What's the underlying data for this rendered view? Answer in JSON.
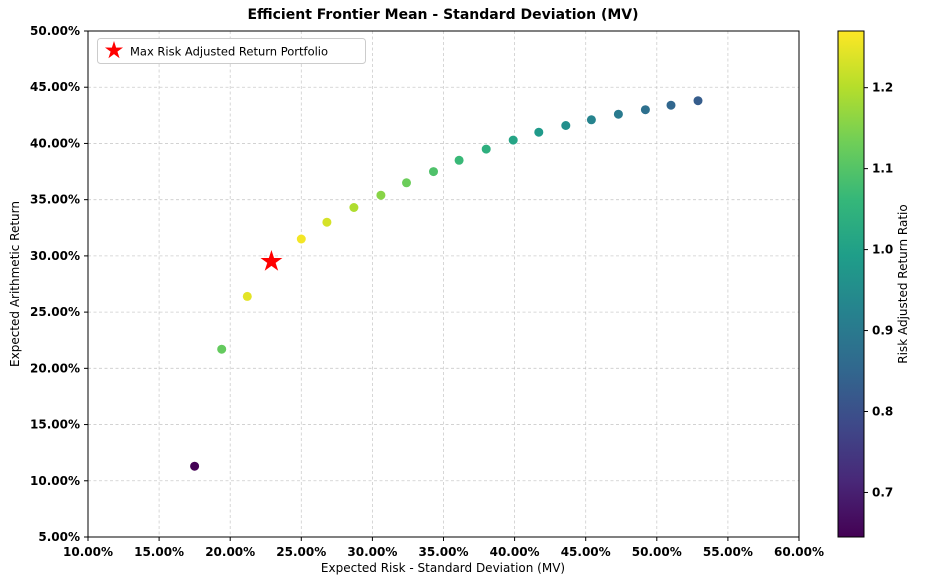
{
  "chart_data": {
    "type": "scatter",
    "title": "Efficient Frontier Mean - Standard Deviation (MV)",
    "xlabel": "Expected Risk - Standard Deviation (MV)",
    "ylabel": "Expected Arithmetic Return",
    "xlim": [
      10,
      60
    ],
    "ylim": [
      5,
      50
    ],
    "grid": true,
    "x_ticks": [
      {
        "value": 10,
        "label": "10.00%"
      },
      {
        "value": 15,
        "label": "15.00%"
      },
      {
        "value": 20,
        "label": "20.00%"
      },
      {
        "value": 25,
        "label": "25.00%"
      },
      {
        "value": 30,
        "label": "30.00%"
      },
      {
        "value": 35,
        "label": "35.00%"
      },
      {
        "value": 40,
        "label": "40.00%"
      },
      {
        "value": 45,
        "label": "45.00%"
      },
      {
        "value": 50,
        "label": "50.00%"
      },
      {
        "value": 55,
        "label": "55.00%"
      },
      {
        "value": 60,
        "label": "60.00%"
      }
    ],
    "y_ticks": [
      {
        "value": 5,
        "label": "5.00%"
      },
      {
        "value": 10,
        "label": "10.00%"
      },
      {
        "value": 15,
        "label": "15.00%"
      },
      {
        "value": 20,
        "label": "20.00%"
      },
      {
        "value": 25,
        "label": "25.00%"
      },
      {
        "value": 30,
        "label": "30.00%"
      },
      {
        "value": 35,
        "label": "35.00%"
      },
      {
        "value": 40,
        "label": "40.00%"
      },
      {
        "value": 45,
        "label": "45.00%"
      },
      {
        "value": 50,
        "label": "50.00%"
      }
    ],
    "legend": {
      "position": "upper left",
      "entries": [
        {
          "label": "Max Risk Adjusted Return Portfolio",
          "marker": "star",
          "color": "#ff0000"
        }
      ]
    },
    "colormap": "viridis",
    "colorbar": {
      "label": "Risk Adjusted Return Ratio",
      "vmin": 0.645,
      "vmax": 1.27,
      "ticks": [
        {
          "value": 0.7,
          "label": "0.7"
        },
        {
          "value": 0.8,
          "label": "0.8"
        },
        {
          "value": 0.9,
          "label": "0.9"
        },
        {
          "value": 1.0,
          "label": "1.0"
        },
        {
          "value": 1.1,
          "label": "1.1"
        },
        {
          "value": 1.2,
          "label": "1.2"
        }
      ]
    },
    "series": [
      {
        "name": "efficient-frontier",
        "points": [
          {
            "x": 17.5,
            "y": 11.3,
            "ratio": 0.646
          },
          {
            "x": 19.4,
            "y": 21.7,
            "ratio": 1.119
          },
          {
            "x": 21.2,
            "y": 26.4,
            "ratio": 1.245
          },
          {
            "x": 25.0,
            "y": 31.5,
            "ratio": 1.26
          },
          {
            "x": 26.8,
            "y": 33.0,
            "ratio": 1.231
          },
          {
            "x": 28.7,
            "y": 34.3,
            "ratio": 1.195
          },
          {
            "x": 30.6,
            "y": 35.4,
            "ratio": 1.157
          },
          {
            "x": 32.4,
            "y": 36.5,
            "ratio": 1.127
          },
          {
            "x": 34.3,
            "y": 37.5,
            "ratio": 1.093
          },
          {
            "x": 36.1,
            "y": 38.5,
            "ratio": 1.066
          },
          {
            "x": 38.0,
            "y": 39.5,
            "ratio": 1.039
          },
          {
            "x": 39.9,
            "y": 40.3,
            "ratio": 1.01
          },
          {
            "x": 41.7,
            "y": 41.0,
            "ratio": 0.983
          },
          {
            "x": 43.6,
            "y": 41.6,
            "ratio": 0.954
          },
          {
            "x": 45.4,
            "y": 42.1,
            "ratio": 0.927
          },
          {
            "x": 47.3,
            "y": 42.6,
            "ratio": 0.901
          },
          {
            "x": 49.2,
            "y": 43.0,
            "ratio": 0.874
          },
          {
            "x": 51.0,
            "y": 43.4,
            "ratio": 0.851
          },
          {
            "x": 52.9,
            "y": 43.8,
            "ratio": 0.828
          }
        ]
      }
    ],
    "max_risk_adjusted_point": {
      "x": 22.9,
      "y": 29.5,
      "ratio": 1.288,
      "marker": "star",
      "color": "#ff0000"
    }
  }
}
